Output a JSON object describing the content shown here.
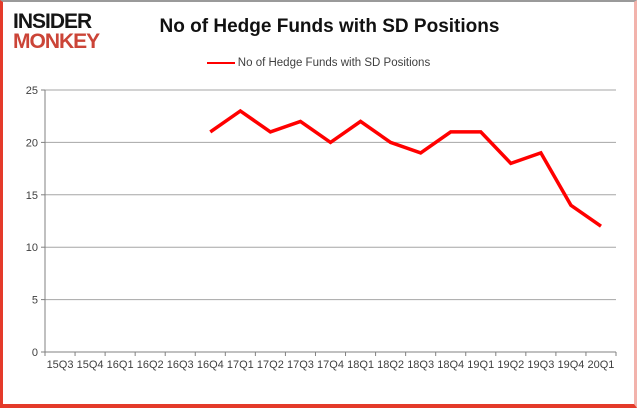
{
  "logo": {
    "line1": "INSIDER",
    "line2": "MONKEY",
    "red": "#cb4437"
  },
  "header": {
    "title": "No of Hedge Funds with SD Positions"
  },
  "legend": {
    "label": "No of Hedge Funds with SD Positions",
    "swatch_color": "#ff0000"
  },
  "chart_data": {
    "type": "line",
    "title": "No of Hedge Funds with SD Positions",
    "categories": [
      "15Q3",
      "15Q4",
      "16Q1",
      "16Q2",
      "16Q3",
      "16Q4",
      "17Q1",
      "17Q2",
      "17Q3",
      "17Q4",
      "18Q1",
      "18Q2",
      "18Q3",
      "18Q4",
      "19Q1",
      "19Q2",
      "19Q3",
      "19Q4",
      "20Q1"
    ],
    "series": [
      {
        "name": "No of Hedge Funds with SD Positions",
        "color": "#ff0000",
        "values": [
          null,
          null,
          null,
          null,
          null,
          21,
          23,
          21,
          22,
          20,
          22,
          20,
          19,
          21,
          21,
          18,
          19,
          14,
          12
        ]
      }
    ],
    "ylim": [
      0,
      25
    ],
    "yticks": [
      0,
      5,
      10,
      15,
      20,
      25
    ],
    "grid": true,
    "legend_position": "top"
  },
  "colors": {
    "line": "#ff0000",
    "grid": "#a6a6a6",
    "axis": "#808080",
    "tick_label": "#3f3f3f"
  }
}
